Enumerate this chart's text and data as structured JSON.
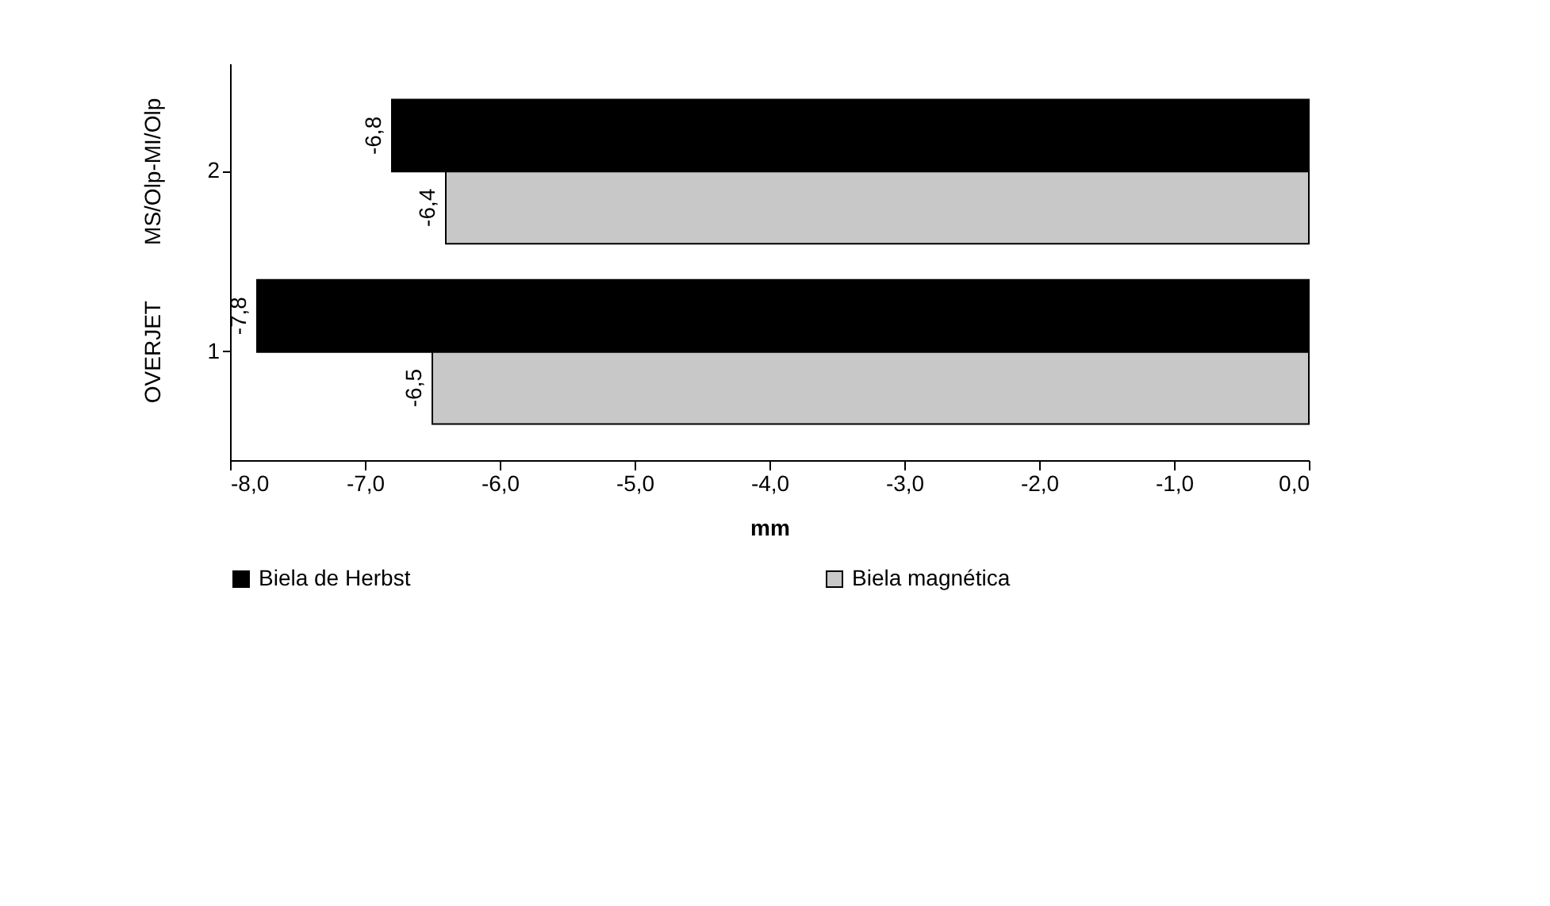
{
  "chart_data": {
    "type": "bar",
    "orientation": "horizontal",
    "categories": [
      "2",
      "1"
    ],
    "series": [
      {
        "name": "Biela de Herbst",
        "color": "#000000",
        "values": [
          -6.8,
          -7.8
        ],
        "value_labels": [
          "-6,8",
          "-7,8"
        ]
      },
      {
        "name": "Biela magnética",
        "color": "#c8c8c8",
        "values": [
          -6.4,
          -6.5
        ],
        "value_labels": [
          "-6,4",
          "-6,5"
        ]
      }
    ],
    "xlabel": "mm",
    "xlim": [
      -8,
      0
    ],
    "xticks": [
      {
        "value": -8,
        "label": "-8,0"
      },
      {
        "value": -7,
        "label": "-7,0"
      },
      {
        "value": -6,
        "label": "-6,0"
      },
      {
        "value": -5,
        "label": "-5,0"
      },
      {
        "value": -4,
        "label": "-4,0"
      },
      {
        "value": -3,
        "label": "-3,0"
      },
      {
        "value": -2,
        "label": "-2,0"
      },
      {
        "value": -1,
        "label": "-1,0"
      },
      {
        "value": 0,
        "label": "0,0"
      }
    ],
    "annotations": [
      "MS/Olp-MI/Olp",
      "OVERJET"
    ],
    "legend": "bottom",
    "grid": false
  }
}
